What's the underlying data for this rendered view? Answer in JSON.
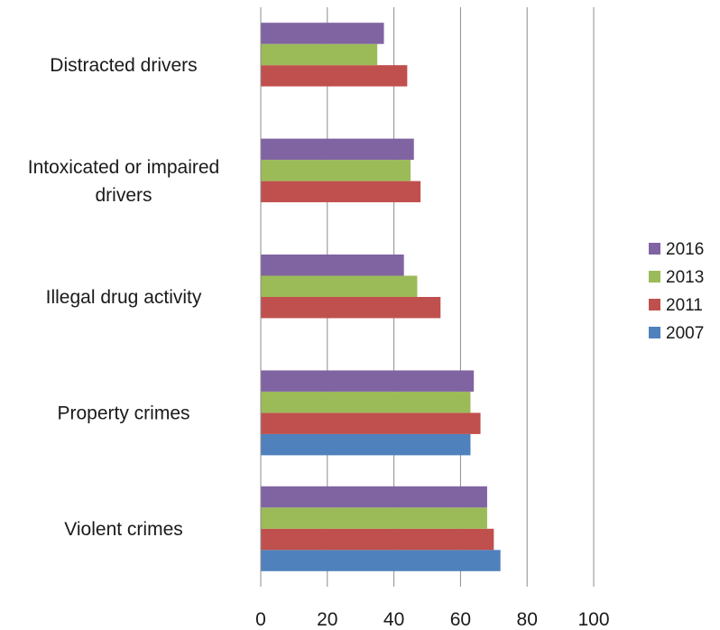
{
  "chart_data": {
    "type": "bar",
    "orientation": "horizontal",
    "categories": [
      "Violent crimes",
      "Property crimes",
      "Illegal drug activity",
      [
        "Intoxicated or impaired",
        "drivers"
      ],
      "Distracted drivers"
    ],
    "series": [
      {
        "name": "2007",
        "color": "#4F81BD",
        "values": [
          72,
          63,
          null,
          null,
          null
        ]
      },
      {
        "name": "2011",
        "color": "#C0504D",
        "values": [
          70,
          66,
          54,
          48,
          44
        ]
      },
      {
        "name": "2013",
        "color": "#9BBB59",
        "values": [
          68,
          63,
          47,
          45,
          35
        ]
      },
      {
        "name": "2016",
        "color": "#8064A2",
        "values": [
          68,
          64,
          43,
          46,
          37
        ]
      }
    ],
    "xlim": [
      0,
      100
    ],
    "xticks": [
      0,
      20,
      40,
      60,
      80,
      100
    ],
    "grid": true,
    "legend_position": "right",
    "legend_order": [
      "2016",
      "2013",
      "2011",
      "2007"
    ]
  }
}
